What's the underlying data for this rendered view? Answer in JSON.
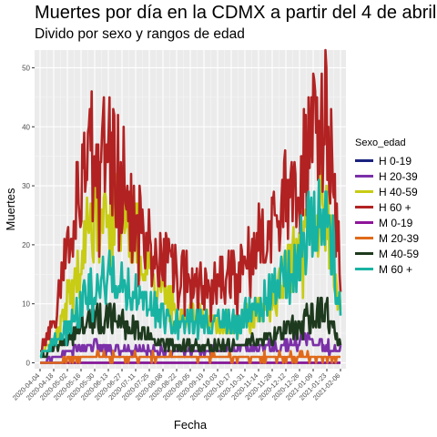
{
  "chart_data": {
    "type": "line",
    "title": "Muertes por día en la CDMX a partir del 4 de abril",
    "subtitle": "Divido por sexo y rangos de edad",
    "xlabel": "Fecha",
    "ylabel": "Muertes",
    "ylim": [
      -1,
      53
    ],
    "yticks": [
      0,
      10,
      20,
      30,
      40,
      50
    ],
    "x_tick_labels": [
      "2020-04-04",
      "2020-04-18",
      "2020-05-02",
      "2020-05-16",
      "2020-05-30",
      "2020-06-13",
      "2020-06-27",
      "2020-07-11",
      "2020-07-25",
      "2020-08-08",
      "2020-08-22",
      "2020-09-05",
      "2020-09-19",
      "2020-10-03",
      "2020-10-17",
      "2020-10-31",
      "2020-11-14",
      "2020-11-28",
      "2020-12-12",
      "2020-12-26",
      "2021-01-09",
      "2021-01-23",
      "2021-02-06"
    ],
    "legend_title": "Sexo_edad",
    "legend_position": "right",
    "grid": true,
    "x_days": 320,
    "series": [
      {
        "name": "H 0-19",
        "color": "#1a237e",
        "keys": [
          [
            0,
            0
          ],
          [
            320,
            0
          ]
        ]
      },
      {
        "name": "H 20-39",
        "color": "#7b2fa8",
        "keys": [
          [
            0,
            0
          ],
          [
            30,
            2
          ],
          [
            60,
            3
          ],
          [
            90,
            2
          ],
          [
            150,
            2
          ],
          [
            200,
            2
          ],
          [
            250,
            3
          ],
          [
            290,
            4
          ],
          [
            320,
            2
          ]
        ]
      },
      {
        "name": "H 40-59",
        "color": "#c8cc14",
        "keys": [
          [
            0,
            1
          ],
          [
            20,
            5
          ],
          [
            40,
            18
          ],
          [
            60,
            25
          ],
          [
            80,
            27
          ],
          [
            100,
            22
          ],
          [
            120,
            14
          ],
          [
            150,
            8
          ],
          [
            180,
            7
          ],
          [
            210,
            7
          ],
          [
            240,
            10
          ],
          [
            270,
            18
          ],
          [
            290,
            25
          ],
          [
            305,
            26
          ],
          [
            320,
            8
          ]
        ]
      },
      {
        "name": "H 60 +",
        "color": "#b22222",
        "keys": [
          [
            0,
            2
          ],
          [
            15,
            7
          ],
          [
            30,
            20
          ],
          [
            45,
            31
          ],
          [
            55,
            36
          ],
          [
            70,
            37
          ],
          [
            90,
            31
          ],
          [
            110,
            22
          ],
          [
            130,
            18
          ],
          [
            150,
            15
          ],
          [
            170,
            14
          ],
          [
            190,
            14
          ],
          [
            210,
            15
          ],
          [
            230,
            20
          ],
          [
            250,
            24
          ],
          [
            270,
            30
          ],
          [
            285,
            35
          ],
          [
            300,
            42
          ],
          [
            305,
            44
          ],
          [
            315,
            30
          ],
          [
            320,
            12
          ]
        ]
      },
      {
        "name": "M 0-19",
        "color": "#8e159a",
        "keys": [
          [
            0,
            0
          ],
          [
            320,
            0
          ]
        ]
      },
      {
        "name": "M 20-39",
        "color": "#e06a1a",
        "keys": [
          [
            0,
            0
          ],
          [
            50,
            1
          ],
          [
            150,
            1
          ],
          [
            320,
            1
          ]
        ]
      },
      {
        "name": "M 40-59",
        "color": "#1e3a1e",
        "keys": [
          [
            0,
            1
          ],
          [
            30,
            4
          ],
          [
            60,
            8
          ],
          [
            90,
            7
          ],
          [
            120,
            4
          ],
          [
            150,
            3
          ],
          [
            180,
            3
          ],
          [
            210,
            3
          ],
          [
            240,
            4
          ],
          [
            270,
            6
          ],
          [
            290,
            8
          ],
          [
            305,
            9
          ],
          [
            320,
            3
          ]
        ]
      },
      {
        "name": "M 60 +",
        "color": "#19b3a3",
        "keys": [
          [
            0,
            1
          ],
          [
            30,
            6
          ],
          [
            50,
            12
          ],
          [
            70,
            15
          ],
          [
            90,
            13
          ],
          [
            120,
            9
          ],
          [
            150,
            7
          ],
          [
            180,
            7
          ],
          [
            210,
            7
          ],
          [
            240,
            11
          ],
          [
            270,
            17
          ],
          [
            290,
            24
          ],
          [
            305,
            28
          ],
          [
            320,
            10
          ]
        ]
      }
    ]
  }
}
